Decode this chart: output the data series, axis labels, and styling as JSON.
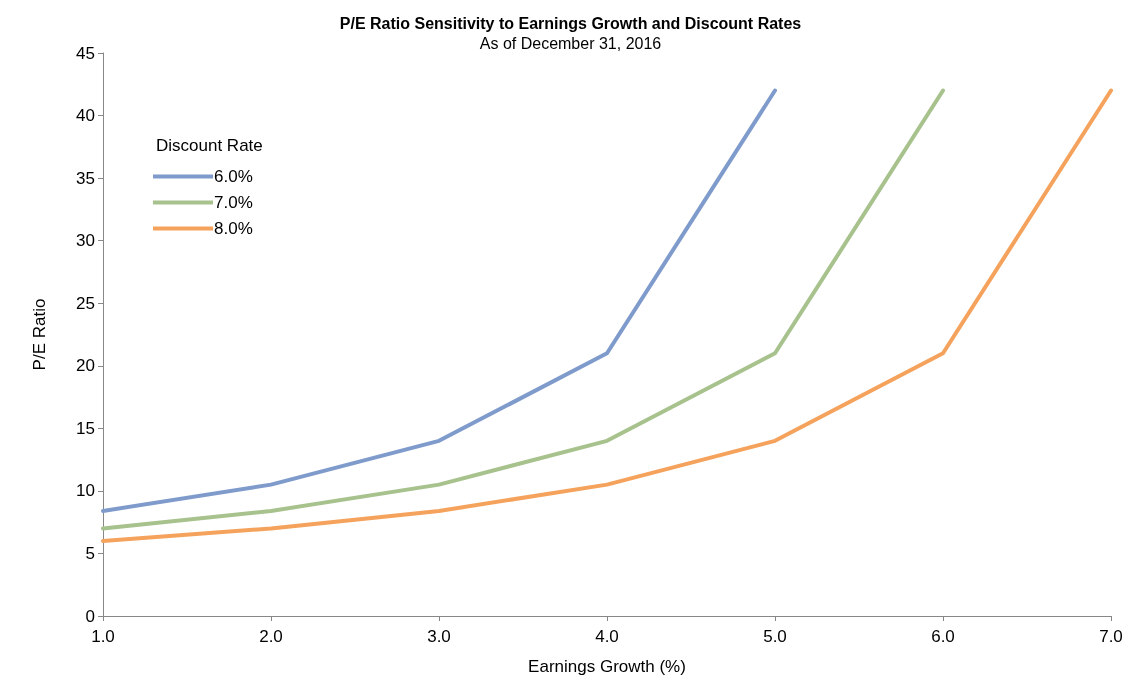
{
  "chart_data": {
    "type": "line",
    "title": "P/E Ratio Sensitivity to Earnings Growth and Discount Rates",
    "subtitle": "As of December 31, 2016",
    "xlabel": "Earnings Growth (%)",
    "ylabel": "P/E Ratio",
    "legend_title": "Discount Rate",
    "legend": "top left",
    "grid": false,
    "marker": "none",
    "line_style": "solid",
    "xlim": [
      1,
      7
    ],
    "xticks": [
      {
        "value": 1,
        "label": "1.0"
      },
      {
        "value": 2,
        "label": "2.0"
      },
      {
        "value": 3,
        "label": "3.0"
      },
      {
        "value": 4,
        "label": "4.0"
      },
      {
        "value": 5,
        "label": "5.0"
      },
      {
        "value": 6,
        "label": "6.0"
      },
      {
        "value": 7,
        "label": "7.0"
      }
    ],
    "ylim": [
      0,
      45
    ],
    "yticks": [
      0,
      5,
      10,
      15,
      20,
      25,
      30,
      35,
      40,
      45
    ],
    "series": [
      {
        "name": "6.0%",
        "color": "#7f9bcc",
        "x": [
          1,
          2,
          3,
          4,
          5
        ],
        "values": [
          8.4,
          10.5,
          14,
          21,
          42
        ]
      },
      {
        "name": "7.0%",
        "color": "#a7c28d",
        "x": [
          1,
          2,
          3,
          4,
          5,
          6
        ],
        "values": [
          7,
          8.4,
          10.5,
          14,
          21,
          42
        ]
      },
      {
        "name": "8.0%",
        "color": "#f5a25d",
        "x": [
          1,
          2,
          3,
          4,
          5,
          6,
          7
        ],
        "values": [
          6,
          7,
          8.4,
          10.5,
          14,
          21,
          42
        ]
      }
    ]
  }
}
